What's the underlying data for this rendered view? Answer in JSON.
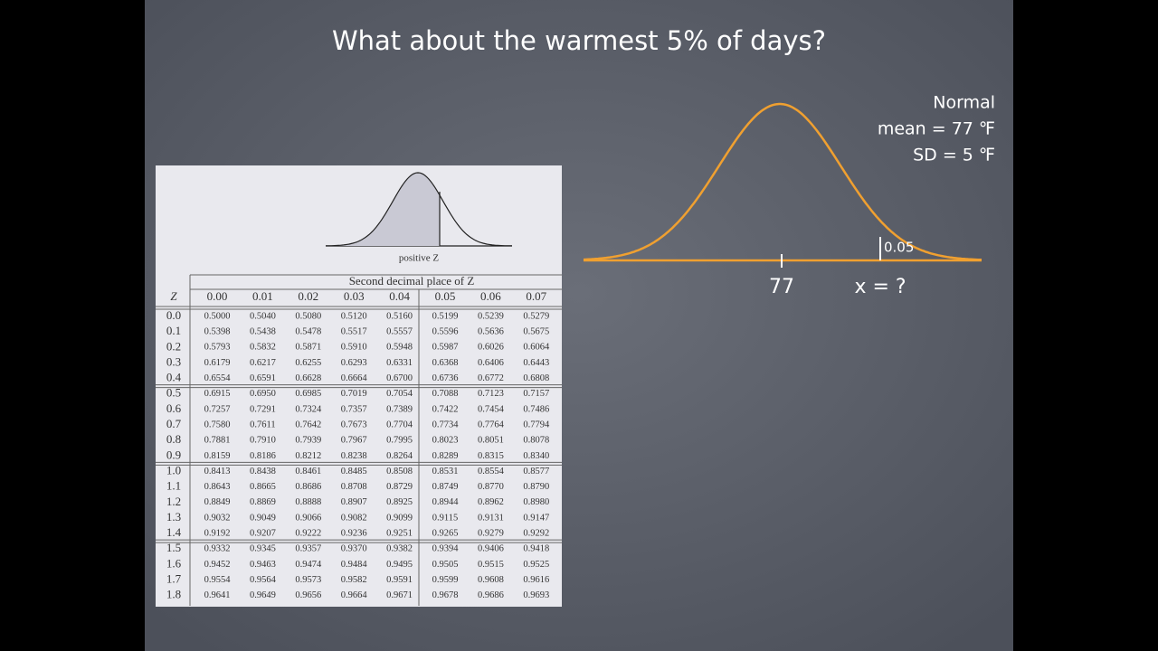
{
  "slide": {
    "title": "What about the warmest 5% of days?"
  },
  "table": {
    "figure_label": "positive Z",
    "header": "Second decimal place of Z",
    "corner": "Z",
    "columns": [
      "0.00",
      "0.01",
      "0.02",
      "0.03",
      "0.04",
      "0.05",
      "0.06",
      "0.07"
    ],
    "rows": [
      {
        "z": "0.0",
        "values": [
          "0.5000",
          "0.5040",
          "0.5080",
          "0.5120",
          "0.5160",
          "0.5199",
          "0.5239",
          "0.5279"
        ]
      },
      {
        "z": "0.1",
        "values": [
          "0.5398",
          "0.5438",
          "0.5478",
          "0.5517",
          "0.5557",
          "0.5596",
          "0.5636",
          "0.5675"
        ]
      },
      {
        "z": "0.2",
        "values": [
          "0.5793",
          "0.5832",
          "0.5871",
          "0.5910",
          "0.5948",
          "0.5987",
          "0.6026",
          "0.6064"
        ]
      },
      {
        "z": "0.3",
        "values": [
          "0.6179",
          "0.6217",
          "0.6255",
          "0.6293",
          "0.6331",
          "0.6368",
          "0.6406",
          "0.6443"
        ]
      },
      {
        "z": "0.4",
        "values": [
          "0.6554",
          "0.6591",
          "0.6628",
          "0.6664",
          "0.6700",
          "0.6736",
          "0.6772",
          "0.6808"
        ]
      },
      {
        "z": "0.5",
        "values": [
          "0.6915",
          "0.6950",
          "0.6985",
          "0.7019",
          "0.7054",
          "0.7088",
          "0.7123",
          "0.7157"
        ]
      },
      {
        "z": "0.6",
        "values": [
          "0.7257",
          "0.7291",
          "0.7324",
          "0.7357",
          "0.7389",
          "0.7422",
          "0.7454",
          "0.7486"
        ]
      },
      {
        "z": "0.7",
        "values": [
          "0.7580",
          "0.7611",
          "0.7642",
          "0.7673",
          "0.7704",
          "0.7734",
          "0.7764",
          "0.7794"
        ]
      },
      {
        "z": "0.8",
        "values": [
          "0.7881",
          "0.7910",
          "0.7939",
          "0.7967",
          "0.7995",
          "0.8023",
          "0.8051",
          "0.8078"
        ]
      },
      {
        "z": "0.9",
        "values": [
          "0.8159",
          "0.8186",
          "0.8212",
          "0.8238",
          "0.8264",
          "0.8289",
          "0.8315",
          "0.8340"
        ]
      },
      {
        "z": "1.0",
        "values": [
          "0.8413",
          "0.8438",
          "0.8461",
          "0.8485",
          "0.8508",
          "0.8531",
          "0.8554",
          "0.8577"
        ]
      },
      {
        "z": "1.1",
        "values": [
          "0.8643",
          "0.8665",
          "0.8686",
          "0.8708",
          "0.8729",
          "0.8749",
          "0.8770",
          "0.8790"
        ]
      },
      {
        "z": "1.2",
        "values": [
          "0.8849",
          "0.8869",
          "0.8888",
          "0.8907",
          "0.8925",
          "0.8944",
          "0.8962",
          "0.8980"
        ]
      },
      {
        "z": "1.3",
        "values": [
          "0.9032",
          "0.9049",
          "0.9066",
          "0.9082",
          "0.9099",
          "0.9115",
          "0.9131",
          "0.9147"
        ]
      },
      {
        "z": "1.4",
        "values": [
          "0.9192",
          "0.9207",
          "0.9222",
          "0.9236",
          "0.9251",
          "0.9265",
          "0.9279",
          "0.9292"
        ]
      },
      {
        "z": "1.5",
        "values": [
          "0.9332",
          "0.9345",
          "0.9357",
          "0.9370",
          "0.9382",
          "0.9394",
          "0.9406",
          "0.9418"
        ]
      },
      {
        "z": "1.6",
        "values": [
          "0.9452",
          "0.9463",
          "0.9474",
          "0.9484",
          "0.9495",
          "0.9505",
          "0.9515",
          "0.9525"
        ]
      },
      {
        "z": "1.7",
        "values": [
          "0.9554",
          "0.9564",
          "0.9573",
          "0.9582",
          "0.9591",
          "0.9599",
          "0.9608",
          "0.9616"
        ]
      },
      {
        "z": "1.8",
        "values": [
          "0.9641",
          "0.9649",
          "0.9656",
          "0.9664",
          "0.9671",
          "0.9678",
          "0.9686",
          "0.9693"
        ]
      }
    ]
  },
  "diagram": {
    "distribution": "Normal",
    "mean_label": "mean = 77 ℉",
    "sd_label": "SD = 5 ℉",
    "tail_area": "0.05",
    "mean_tick": "77",
    "unknown": "x = ?"
  }
}
